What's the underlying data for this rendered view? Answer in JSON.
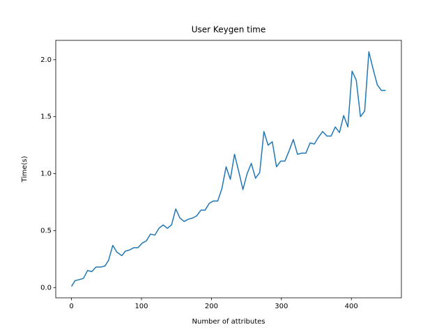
{
  "chart_data": {
    "type": "line",
    "title": "User Keygen time",
    "x_label": "Number of attributes",
    "y_label": "Time(s)",
    "x": [
      0,
      5,
      17,
      23,
      29,
      35,
      42,
      48,
      53,
      59,
      65,
      72,
      77,
      83,
      89,
      95,
      101,
      107,
      113,
      119,
      125,
      131,
      137,
      143,
      149,
      155,
      161,
      167,
      173,
      179,
      185,
      191,
      197,
      203,
      209,
      215,
      221,
      227,
      233,
      239,
      245,
      251,
      257,
      263,
      269,
      275,
      281,
      287,
      293,
      299,
      305,
      311,
      317,
      323,
      329,
      335,
      341,
      347,
      353,
      359,
      365,
      371,
      377,
      383,
      389,
      395,
      401,
      407,
      413,
      419,
      425,
      431,
      437,
      443,
      449
    ],
    "series": [
      {
        "name": "User Keygen time",
        "color": "#1f77b4",
        "values": [
          0.01,
          0.06,
          0.08,
          0.15,
          0.14,
          0.18,
          0.18,
          0.19,
          0.24,
          0.37,
          0.31,
          0.28,
          0.32,
          0.33,
          0.35,
          0.35,
          0.39,
          0.41,
          0.47,
          0.46,
          0.52,
          0.55,
          0.52,
          0.55,
          0.69,
          0.61,
          0.58,
          0.6,
          0.61,
          0.63,
          0.68,
          0.68,
          0.74,
          0.76,
          0.76,
          0.87,
          1.06,
          0.95,
          1.17,
          1.02,
          0.86,
          1.0,
          1.09,
          0.96,
          1.01,
          1.37,
          1.25,
          1.28,
          1.06,
          1.11,
          1.11,
          1.2,
          1.3,
          1.17,
          1.18,
          1.18,
          1.27,
          1.26,
          1.32,
          1.37,
          1.33,
          1.33,
          1.41,
          1.36,
          1.51,
          1.41,
          1.9,
          1.82,
          1.5,
          1.55,
          2.07,
          1.92,
          1.78,
          1.73,
          1.73
        ]
      }
    ],
    "xlim": [
      -22.5,
      471.5
    ],
    "ylim": [
      -0.09,
      2.17
    ],
    "xticks": [
      0,
      100,
      200,
      300,
      400
    ],
    "yticks": [
      {
        "value": 0,
        "label": "0.0"
      },
      0.5,
      {
        "value": 1,
        "label": "1.0"
      },
      1.5,
      {
        "value": 2,
        "label": "2.0"
      }
    ]
  }
}
